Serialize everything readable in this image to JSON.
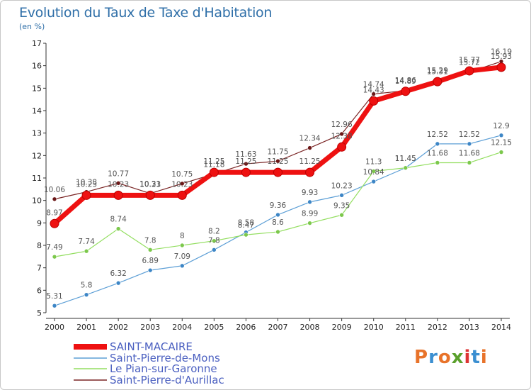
{
  "title": "Evolution du Taux de Taxe d'Habitation",
  "unit": "(en %)",
  "logo": {
    "text": "Proxiti",
    "colors": [
      "#e8732a",
      "#3b8fd1",
      "#e8732a",
      "#5aa02c",
      "#d33",
      "#3b8fd1",
      "#e8732a"
    ]
  },
  "chart_data": {
    "type": "line",
    "x": [
      2000,
      2001,
      2002,
      2003,
      2004,
      2005,
      2006,
      2007,
      2008,
      2009,
      2010,
      2011,
      2012,
      2013,
      2014
    ],
    "ylim": [
      5,
      17
    ],
    "yticks": [
      5,
      6,
      7,
      8,
      9,
      10,
      11,
      12,
      13,
      14,
      15,
      16,
      17
    ],
    "grid": false,
    "legend": "bottom-left",
    "series": [
      {
        "name": "SAINT-MACAIRE",
        "color": "#ee1111",
        "width": 7,
        "values": [
          8.97,
          10.23,
          10.23,
          10.23,
          10.23,
          11.25,
          11.25,
          11.25,
          11.25,
          12.38,
          14.43,
          14.86,
          15.29,
          15.77,
          15.93
        ]
      },
      {
        "name": "Saint-Pierre-de-Mons",
        "color": "#5d9fd6",
        "width": 1.2,
        "values": [
          5.31,
          5.8,
          6.32,
          6.89,
          7.09,
          7.8,
          8.58,
          9.36,
          9.93,
          10.23,
          10.84,
          11.45,
          12.52,
          12.52,
          12.9
        ]
      },
      {
        "name": "Le Pian-sur-Garonne",
        "color": "#93de60",
        "width": 1.2,
        "values": [
          7.49,
          7.74,
          8.74,
          7.8,
          8,
          8.2,
          8.47,
          8.6,
          8.99,
          9.35,
          11.3,
          11.45,
          11.68,
          11.68,
          12.15
        ]
      },
      {
        "name": "Saint-Pierre-d'Aurillac",
        "color": "#7a2424",
        "width": 1.2,
        "values": [
          10.06,
          10.38,
          10.77,
          10.31,
          10.75,
          11.18,
          11.63,
          11.75,
          12.34,
          12.96,
          14.74,
          14.89,
          15.31,
          15.72,
          16.19
        ]
      }
    ],
    "labels": [
      [
        "8.97",
        "10.23",
        "10.23",
        "10.23",
        "10.23",
        "11.25",
        "11.25",
        "11.25",
        "11.25",
        "12.38",
        "14.43",
        "14.86",
        "15.29",
        "15.77",
        "15.93"
      ],
      [
        "5.31",
        "5.8",
        "6.32",
        "6.89",
        "7.09",
        "7.8",
        "8.58",
        "9.36",
        "9.93",
        "10.23",
        "10.84",
        "11.45",
        "12.52",
        "12.52",
        "12.9"
      ],
      [
        "7.49",
        "7.74",
        "8.74",
        "7.8",
        "8",
        "8.2",
        "8.47",
        "8.6",
        "8.99",
        "9.35",
        "11.3",
        "11.45",
        "11.68",
        "11.68",
        "12.15"
      ],
      [
        "10.06",
        "10.38",
        "10.77",
        "10.31",
        "10.75",
        "11.18",
        "11.63",
        "11.75",
        "12.34",
        "12.96",
        "14.74",
        "14.89",
        "15.31",
        "15.72",
        "16.19"
      ]
    ]
  }
}
